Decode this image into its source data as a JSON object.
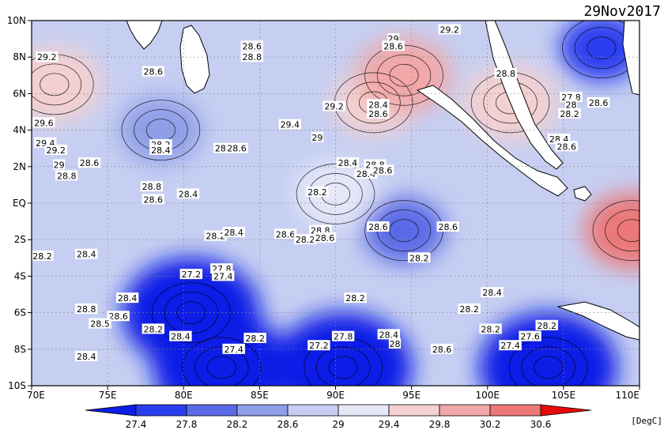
{
  "date": "29Nov2017",
  "unit": "[DegC]",
  "lon_ticks": [
    "70E",
    "75E",
    "80E",
    "85E",
    "90E",
    "95E",
    "100E",
    "105E",
    "110E"
  ],
  "lat_ticks": [
    "10N",
    "8N",
    "6N",
    "4N",
    "2N",
    "EQ",
    "2S",
    "4S",
    "6S",
    "8S",
    "10S"
  ],
  "colorbar": {
    "levels": [
      "27.4",
      "27.8",
      "28.2",
      "28.6",
      "29",
      "29.4",
      "29.8",
      "30.2",
      "30.6"
    ],
    "colors": [
      "#0a1ee6",
      "#2a3ef0",
      "#5a6ae6",
      "#8f9ee8",
      "#c6cff2",
      "#e6e8f8",
      "#f4d0d0",
      "#f2a8a8",
      "#ec7878",
      "#e83a3a",
      "#e60a0a"
    ]
  },
  "map": {
    "lon_range": [
      70,
      110
    ],
    "lat_range": [
      -10,
      10
    ],
    "land_color": "#ffffff",
    "contour_interval": 0.2,
    "warm_spots": [
      {
        "lon": 71.5,
        "lat": 6.5,
        "value": "29.6"
      },
      {
        "lon": 92.5,
        "lat": 5.5,
        "value": "29.4"
      },
      {
        "lon": 94.5,
        "lat": 7.0,
        "value": "29.8"
      },
      {
        "lon": 101.5,
        "lat": 5.5,
        "value": "29.6"
      },
      {
        "lon": 109.5,
        "lat": -1.5,
        "value": "30.2"
      },
      {
        "lon": 90.0,
        "lat": 0.5,
        "value": "29.0"
      }
    ],
    "cold_spots": [
      {
        "lon": 80.5,
        "lat": -6.0,
        "value": "27.2"
      },
      {
        "lon": 82.5,
        "lat": -9.0,
        "value": "27.0"
      },
      {
        "lon": 90.5,
        "lat": -9.0,
        "value": "27.0"
      },
      {
        "lon": 104.0,
        "lat": -9.0,
        "value": "27.0"
      },
      {
        "lon": 107.5,
        "lat": 8.5,
        "value": "27.4"
      },
      {
        "lon": 94.5,
        "lat": -1.5,
        "value": "28.0"
      },
      {
        "lon": 78.5,
        "lat": 4.0,
        "value": "28.2"
      }
    ],
    "contour_labels": [
      {
        "text": "29.2",
        "lon": 71.0,
        "lat": 8.0
      },
      {
        "text": "28.6",
        "lon": 78.0,
        "lat": 7.2
      },
      {
        "text": "28.6",
        "lon": 84.5,
        "lat": 8.6
      },
      {
        "text": "28.8",
        "lon": 84.5,
        "lat": 8.0
      },
      {
        "text": "29",
        "lon": 93.8,
        "lat": 9.0
      },
      {
        "text": "28.6",
        "lon": 93.8,
        "lat": 8.6
      },
      {
        "text": "29.2",
        "lon": 97.5,
        "lat": 9.5
      },
      {
        "text": "28.8",
        "lon": 101.2,
        "lat": 7.1
      },
      {
        "text": "29.2",
        "lon": 89.9,
        "lat": 5.3
      },
      {
        "text": "28.4",
        "lon": 92.8,
        "lat": 5.4
      },
      {
        "text": "28.6",
        "lon": 92.8,
        "lat": 4.9
      },
      {
        "text": "27.8",
        "lon": 105.5,
        "lat": 5.8
      },
      {
        "text": "28",
        "lon": 105.5,
        "lat": 5.4
      },
      {
        "text": "28.6",
        "lon": 107.3,
        "lat": 5.5
      },
      {
        "text": "28.2",
        "lon": 105.4,
        "lat": 4.9
      },
      {
        "text": "29.6",
        "lon": 70.8,
        "lat": 4.4
      },
      {
        "text": "29.4",
        "lon": 70.9,
        "lat": 3.3
      },
      {
        "text": "29.2",
        "lon": 71.6,
        "lat": 2.9
      },
      {
        "text": "29.4",
        "lon": 87.0,
        "lat": 4.3
      },
      {
        "text": "29",
        "lon": 88.8,
        "lat": 3.6
      },
      {
        "text": "28.2",
        "lon": 78.5,
        "lat": 3.2
      },
      {
        "text": "28.4",
        "lon": 78.5,
        "lat": 2.9
      },
      {
        "text": "28.2",
        "lon": 82.7,
        "lat": 3.0
      },
      {
        "text": "28.6",
        "lon": 83.5,
        "lat": 3.0
      },
      {
        "text": "28.4",
        "lon": 104.7,
        "lat": 3.5
      },
      {
        "text": "28.6",
        "lon": 105.2,
        "lat": 3.1
      },
      {
        "text": "29",
        "lon": 71.8,
        "lat": 2.1
      },
      {
        "text": "28.6",
        "lon": 73.8,
        "lat": 2.2
      },
      {
        "text": "28.8",
        "lon": 72.3,
        "lat": 1.5
      },
      {
        "text": "28.4",
        "lon": 90.8,
        "lat": 2.2
      },
      {
        "text": "28.8",
        "lon": 92.6,
        "lat": 2.1
      },
      {
        "text": "28.4",
        "lon": 92.0,
        "lat": 1.6
      },
      {
        "text": "28.6",
        "lon": 93.1,
        "lat": 1.8
      },
      {
        "text": "28.2",
        "lon": 88.8,
        "lat": 0.6
      },
      {
        "text": "28.8",
        "lon": 77.9,
        "lat": 0.9
      },
      {
        "text": "28.6",
        "lon": 78.0,
        "lat": 0.2
      },
      {
        "text": "28.4",
        "lon": 80.3,
        "lat": 0.5
      },
      {
        "text": "28.6",
        "lon": 92.8,
        "lat": -1.3
      },
      {
        "text": "28.6",
        "lon": 97.4,
        "lat": -1.3
      },
      {
        "text": "28.2",
        "lon": 82.1,
        "lat": -1.8
      },
      {
        "text": "28.4",
        "lon": 83.3,
        "lat": -1.6
      },
      {
        "text": "28.6",
        "lon": 86.7,
        "lat": -1.7
      },
      {
        "text": "28.8",
        "lon": 89.0,
        "lat": -1.5
      },
      {
        "text": "28.2",
        "lon": 88.0,
        "lat": -2.0
      },
      {
        "text": "28.6",
        "lon": 89.3,
        "lat": -1.9
      },
      {
        "text": "28.2",
        "lon": 95.5,
        "lat": -3.0
      },
      {
        "text": "28.2",
        "lon": 70.7,
        "lat": -2.9
      },
      {
        "text": "28.4",
        "lon": 73.6,
        "lat": -2.8
      },
      {
        "text": "27.2",
        "lon": 80.5,
        "lat": -3.9
      },
      {
        "text": "27.8",
        "lon": 82.5,
        "lat": -3.6
      },
      {
        "text": "27.4",
        "lon": 82.6,
        "lat": -4.0
      },
      {
        "text": "28.4",
        "lon": 76.3,
        "lat": -5.2
      },
      {
        "text": "28.2",
        "lon": 91.3,
        "lat": -5.2
      },
      {
        "text": "28.4",
        "lon": 100.3,
        "lat": -4.9
      },
      {
        "text": "28.8",
        "lon": 73.6,
        "lat": -5.8
      },
      {
        "text": "28.6",
        "lon": 75.7,
        "lat": -6.2
      },
      {
        "text": "28.5",
        "lon": 74.5,
        "lat": -6.6
      },
      {
        "text": "28.2",
        "lon": 98.8,
        "lat": -5.8
      },
      {
        "text": "28.2",
        "lon": 100.2,
        "lat": -6.9
      },
      {
        "text": "28.2",
        "lon": 78.0,
        "lat": -6.9
      },
      {
        "text": "28.4",
        "lon": 79.8,
        "lat": -7.3
      },
      {
        "text": "28.2",
        "lon": 103.9,
        "lat": -6.7
      },
      {
        "text": "27.6",
        "lon": 102.8,
        "lat": -7.3
      },
      {
        "text": "27.4",
        "lon": 101.5,
        "lat": -7.8
      },
      {
        "text": "28.2",
        "lon": 84.7,
        "lat": -7.4
      },
      {
        "text": "27.4",
        "lon": 83.3,
        "lat": -8.0
      },
      {
        "text": "27.8",
        "lon": 90.5,
        "lat": -7.3
      },
      {
        "text": "27.2",
        "lon": 88.9,
        "lat": -7.8
      },
      {
        "text": "28.4",
        "lon": 93.5,
        "lat": -7.2
      },
      {
        "text": "28",
        "lon": 93.9,
        "lat": -7.7
      },
      {
        "text": "28.6",
        "lon": 97.0,
        "lat": -8.0
      },
      {
        "text": "28.4",
        "lon": 73.6,
        "lat": -8.4
      }
    ]
  }
}
